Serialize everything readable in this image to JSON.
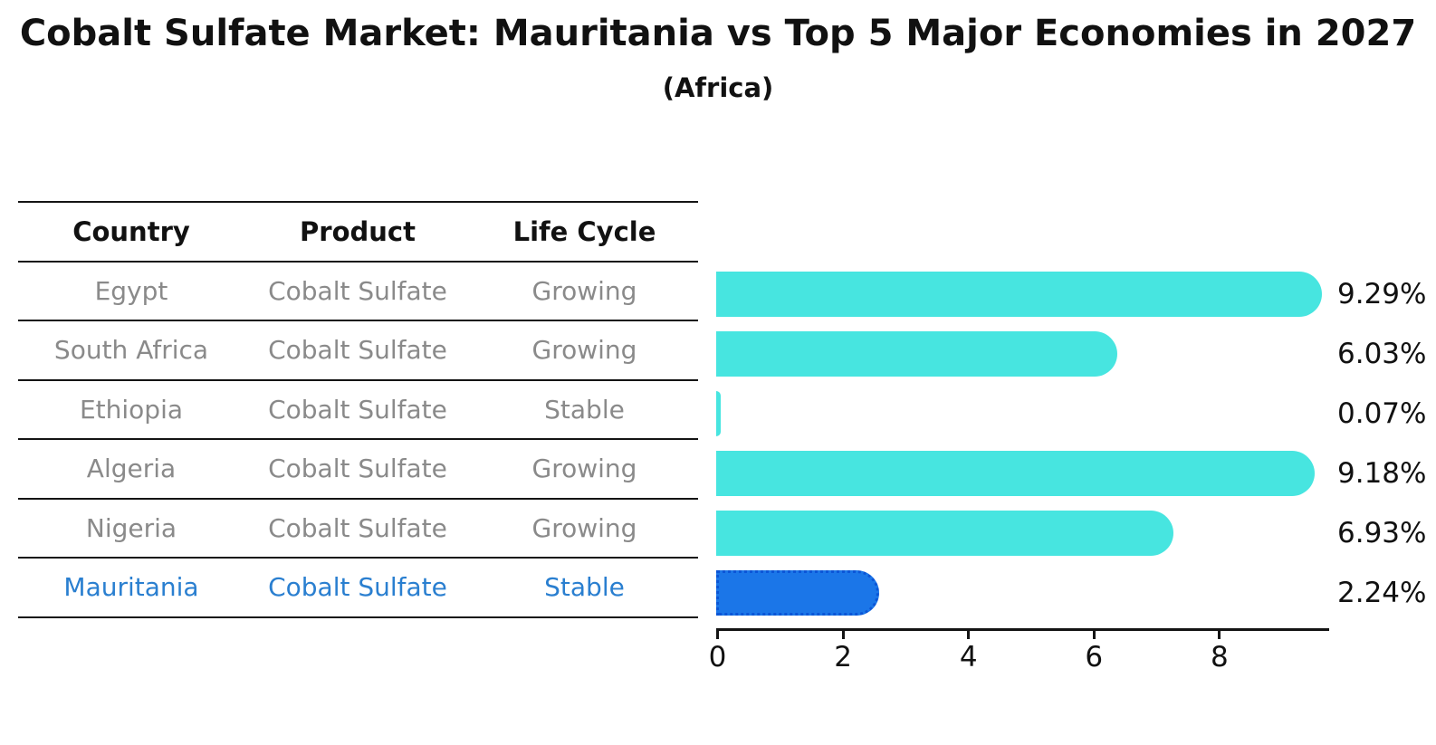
{
  "header": {
    "title": "Cobalt Sulfate Market: Mauritania vs Top 5 Major Economies in 2027",
    "subtitle": "(Africa)"
  },
  "table": {
    "columns": [
      "Country",
      "Product",
      "Life Cycle"
    ],
    "rows": [
      {
        "country": "Egypt",
        "product": "Cobalt Sulfate",
        "life_cycle": "Growing",
        "highlight": false
      },
      {
        "country": "South Africa",
        "product": "Cobalt Sulfate",
        "life_cycle": "Growing",
        "highlight": false
      },
      {
        "country": "Ethiopia",
        "product": "Cobalt Sulfate",
        "life_cycle": "Stable",
        "highlight": false
      },
      {
        "country": "Algeria",
        "product": "Cobalt Sulfate",
        "life_cycle": "Growing",
        "highlight": false
      },
      {
        "country": "Nigeria",
        "product": "Cobalt Sulfate",
        "life_cycle": "Growing",
        "highlight": false
      },
      {
        "country": "Mauritania",
        "product": "Cobalt Sulfate",
        "life_cycle": "Stable",
        "highlight": true
      }
    ]
  },
  "chart_data": {
    "type": "bar",
    "orientation": "horizontal",
    "title": "Cobalt Sulfate Market: Mauritania vs Top 5 Major Economies in 2027",
    "subtitle": "(Africa)",
    "categories": [
      "Egypt",
      "South Africa",
      "Ethiopia",
      "Algeria",
      "Nigeria",
      "Mauritania"
    ],
    "values": [
      9.29,
      6.03,
      0.07,
      9.18,
      6.93,
      2.24
    ],
    "value_labels": [
      "9.29%",
      "6.03%",
      "0.07%",
      "9.18%",
      "6.93%",
      "2.24%"
    ],
    "highlight_category": "Mauritania",
    "xlabel": "",
    "ylabel": "",
    "xlim": [
      0,
      9.78
    ],
    "x_ticks": [
      0,
      2,
      4,
      6,
      8
    ],
    "grid": false,
    "legend": false,
    "colors": {
      "bar": "#47e5e0",
      "highlight_bar": "#1b76e8",
      "highlight_border": "#0b55d6",
      "highlight_text": "#2a7fd0",
      "body_text": "#8a8a8a",
      "axis_text": "#111111"
    }
  }
}
